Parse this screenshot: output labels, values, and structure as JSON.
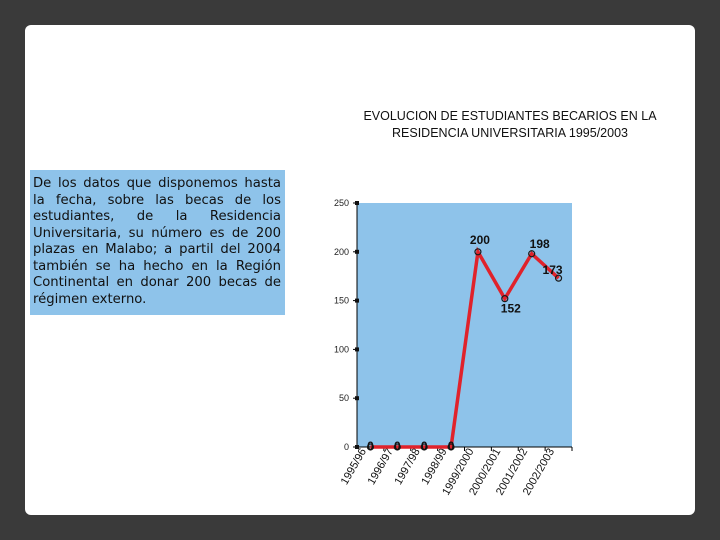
{
  "slide": {
    "description_text": "De los datos que disponemos hasta la fecha, sobre las becas de los estudiantes, de la Residencia Universitaria, su número es de 200 plazas en Malabo; a partil del 2004 también se ha hecho en la Región Continental en donar 200 becas de régimen externo."
  },
  "chart_data": {
    "type": "line",
    "title": "EVOLUCION DE ESTUDIANTES BECARIOS EN LA RESIDENCIA UNIVERSITARIA 1995/2003",
    "xlabel": "",
    "ylabel": "",
    "categories": [
      "1995/96",
      "1996/97",
      "1997/98",
      "1998/99",
      "1999/2000",
      "2000/2001",
      "2001/2002",
      "2002/2003"
    ],
    "series": [
      {
        "values": [
          0,
          0,
          0,
          0,
          200,
          152,
          198,
          173
        ],
        "data_labels": [
          "0",
          "0",
          "0",
          "0",
          "200",
          "152",
          "198",
          "173"
        ]
      }
    ],
    "yticks": [
      "0",
      "50",
      "100",
      "150",
      "200",
      "250"
    ],
    "ylim": [
      0,
      250
    ],
    "grid": false,
    "colors": {
      "line": "#e0222b",
      "marker": "#1a1a1a",
      "plot_bg": "#8ec3ea",
      "axis": "#000000"
    }
  }
}
